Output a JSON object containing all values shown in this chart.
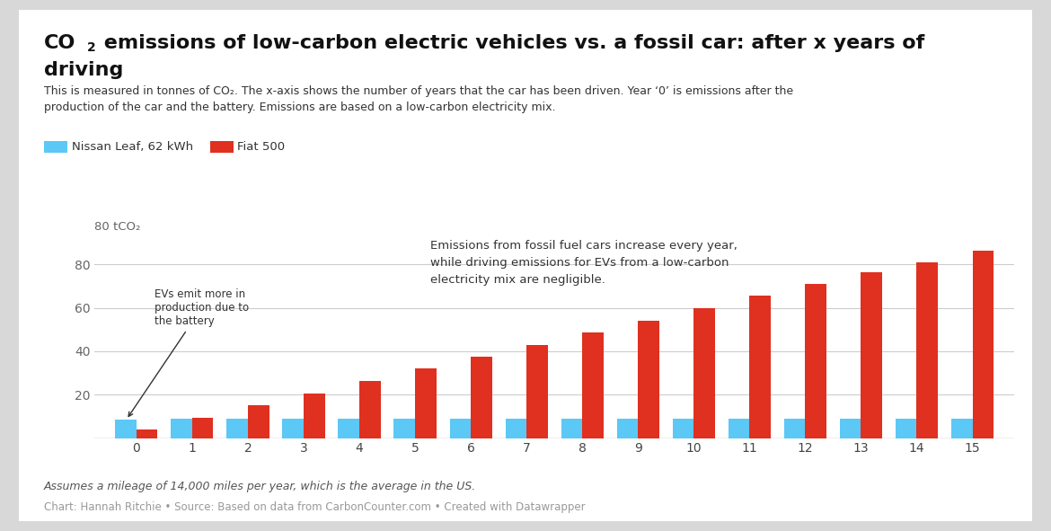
{
  "years": [
    0,
    1,
    2,
    3,
    4,
    5,
    6,
    7,
    8,
    9,
    10,
    11,
    12,
    13,
    14,
    15
  ],
  "nissan_leaf": [
    8.5,
    8.8,
    8.8,
    8.8,
    9.0,
    8.8,
    9.0,
    9.0,
    8.8,
    9.0,
    9.0,
    9.0,
    8.8,
    9.0,
    9.0,
    9.0
  ],
  "fiat_500": [
    4.0,
    9.5,
    15.0,
    20.5,
    26.5,
    32.0,
    37.5,
    43.0,
    48.5,
    54.0,
    60.0,
    65.5,
    71.0,
    76.5,
    81.0,
    86.5
  ],
  "nissan_color": "#5bc8f5",
  "fiat_color": "#e03020",
  "background_color": "#ffffff",
  "outer_bg": "#d8d8d8",
  "subtitle": "This is measured in tonnes of CO₂. The x-axis shows the number of years that the car has been driven. Year ‘0’ is emissions after the\nproduction of the car and the battery. Emissions are based on a low-carbon electricity mix.",
  "legend_nissan": "Nissan Leaf, 62 kWh",
  "legend_fiat": "Fiat 500",
  "yticks": [
    0,
    20,
    40,
    60,
    80
  ],
  "ylim": [
    0,
    93
  ],
  "annotation1_text": "EVs emit more in\nproduction due to\nthe battery",
  "annotation2_text": "Emissions from fossil fuel cars increase every year,\nwhile driving emissions for EVs from a low-carbon\nelectricity mix are negligible.",
  "footer1": "Assumes a mileage of 14,000 miles per year, which is the average in the US.",
  "footer2": "Chart: Hannah Ritchie • Source: Based on data from CarbonCounter.com • Created with Datawrapper"
}
